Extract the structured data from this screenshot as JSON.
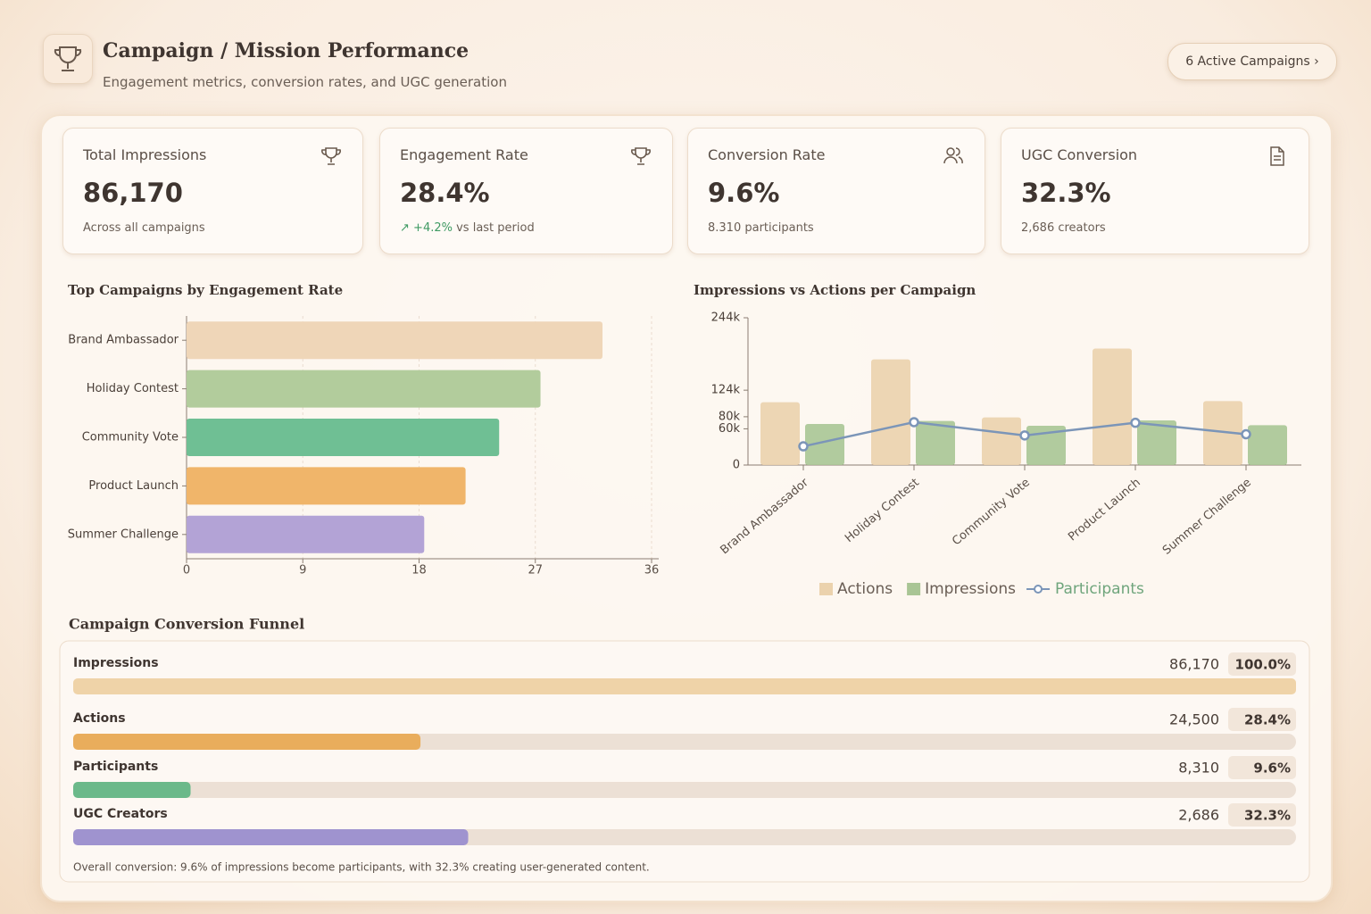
{
  "header": {
    "title": "Campaign / Mission Performance",
    "subtitle": "Engagement metrics, conversion rates, and UGC generation",
    "badge": "6 Active Campaigns"
  },
  "kpis": [
    {
      "label": "Total Impressions",
      "value": "86,170",
      "note": "Across all campaigns"
    },
    {
      "label": "Engagement Rate",
      "value": "28.4%",
      "delta": "+4.2%",
      "note": "vs last period"
    },
    {
      "label": "Conversion Rate",
      "value": "9.6%",
      "note": "8.310 participants"
    },
    {
      "label": "UGC Conversion",
      "value": "32.3%",
      "note": "2,686 creators"
    }
  ],
  "chart_data": [
    {
      "type": "hbar",
      "title": "Top Campaigns by Engagement Rate",
      "categories": [
        "Brand Ambassador",
        "Holiday Contest",
        "Community Vote",
        "Product Launch",
        "Summer Challenge"
      ],
      "values": [
        32.2,
        27.4,
        24.2,
        21.6,
        18.4
      ],
      "colors": [
        "#efd6b8",
        "#b2cc9c",
        "#6fbf94",
        "#f0b56a",
        "#b3a3d6"
      ],
      "xlim": [
        0,
        36
      ],
      "xticks": [
        0,
        9,
        18,
        27,
        36
      ],
      "grid": true
    },
    {
      "type": "combo",
      "title": "Impressions vs Actions per Campaign",
      "categories": [
        "Brand Ambassador",
        "Holiday Contest",
        "Community Vote",
        "Product Launch",
        "Summer Challenge"
      ],
      "series": [
        {
          "name": "Actions",
          "kind": "bar",
          "color": "#ebd2ad",
          "values": [
            104000,
            175000,
            79000,
            193000,
            106000
          ]
        },
        {
          "name": "Impressions",
          "kind": "bar",
          "color": "#a9c595",
          "values": [
            68000,
            73000,
            65000,
            74000,
            66000
          ]
        },
        {
          "name": "Participants",
          "kind": "line",
          "color": "#7b95b8",
          "values": [
            31000,
            71000,
            49000,
            70000,
            51000
          ]
        }
      ],
      "ylim": [
        0,
        244000
      ],
      "yticks": [
        0,
        {
          "value": 60000,
          "label": "60k"
        },
        {
          "value": 80000,
          "label": "80k"
        },
        {
          "value": 124000,
          "label": "124k"
        },
        {
          "value": 244000,
          "label": "244k"
        }
      ],
      "legend": "bottom"
    }
  ],
  "funnel": {
    "title": "Campaign Conversion Funnel",
    "rows": [
      {
        "label": "Impressions",
        "value": 86170,
        "value_label": "86,170",
        "percent": 100.0,
        "percent_label": "100.0%",
        "color": "#efd3a8"
      },
      {
        "label": "Actions",
        "value": 24500,
        "value_label": "24,500",
        "percent": 28.4,
        "percent_label": "28.4%",
        "color": "#e9ad5c"
      },
      {
        "label": "Participants",
        "value": 8310,
        "value_label": "8,310",
        "percent": 9.6,
        "percent_label": "9.6%",
        "color": "#6bb98a"
      },
      {
        "label": "UGC Creators",
        "value": 2686,
        "value_label": "2,686",
        "percent": 32.3,
        "percent_label": "32.3%",
        "color": "#9f93cf"
      }
    ],
    "footnote": "Overall conversion: 9.6% of impressions become participants, with 32.3% creating user-generated content."
  }
}
